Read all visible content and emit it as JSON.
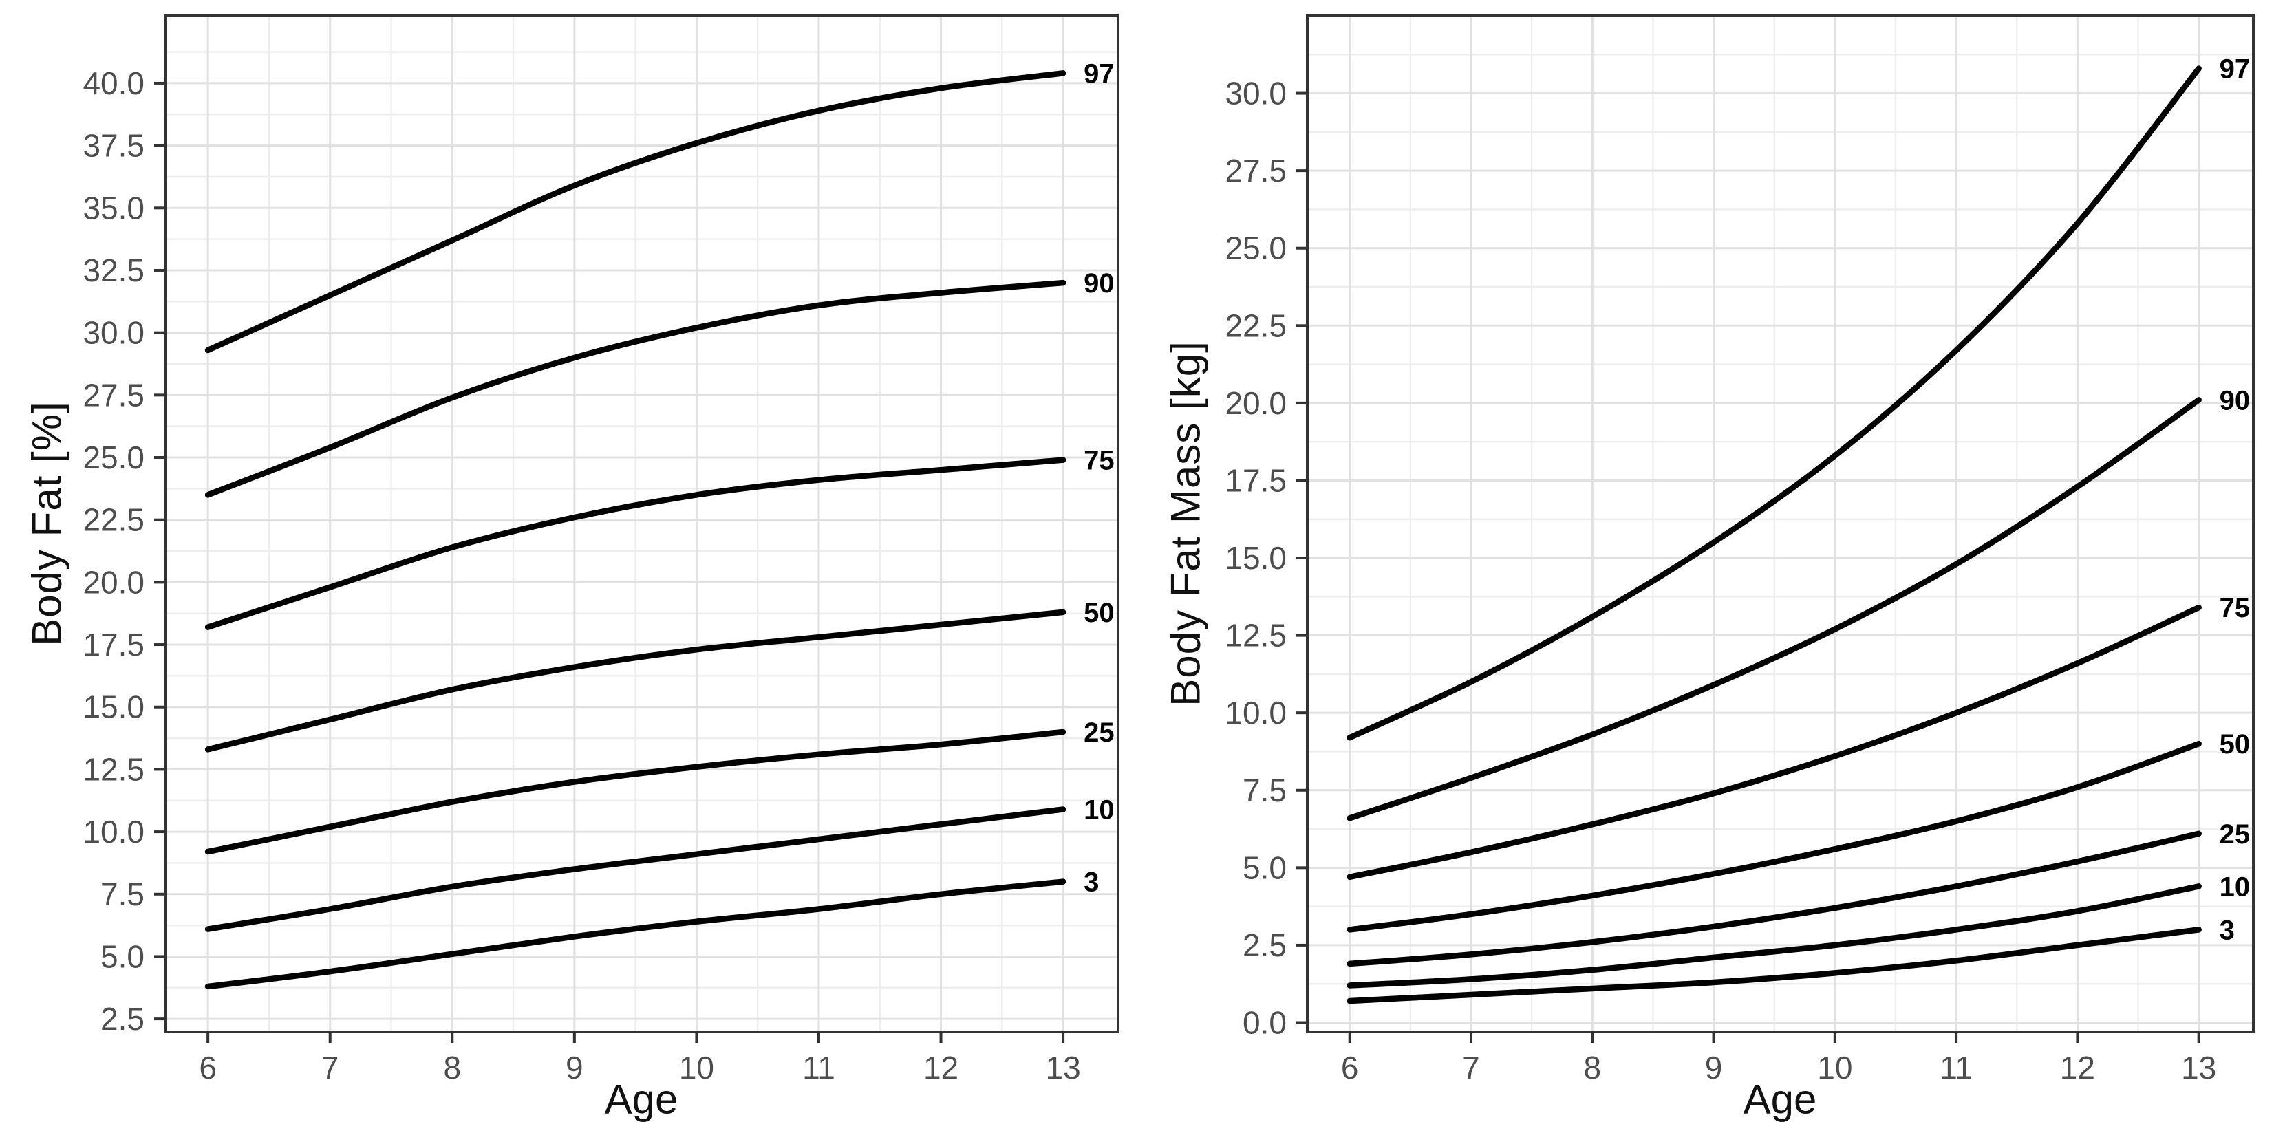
{
  "figure": {
    "background": "#ffffff",
    "colors": {
      "curve": "#000000",
      "panel_border": "#333333",
      "grid_major": "#e1e1e1",
      "grid_minor": "#ededed",
      "tick_mark": "#333333",
      "tick_label": "#4d4d4d",
      "axis_title": "#111111",
      "curve_label": "#000000"
    }
  },
  "chart_data": [
    {
      "type": "line",
      "title": "",
      "xlabel": "Age",
      "ylabel": "Body Fat [%]",
      "grid": true,
      "legend_position": "curve-end-labels",
      "x": [
        6,
        7,
        8,
        9,
        10,
        11,
        12,
        13
      ],
      "x_tick_labels": [
        "6",
        "7",
        "8",
        "9",
        "10",
        "11",
        "12",
        "13"
      ],
      "y_tick_labels": [
        "2.5",
        "5.0",
        "7.5",
        "10.0",
        "12.5",
        "15.0",
        "17.5",
        "20.0",
        "22.5",
        "25.0",
        "27.5",
        "30.0",
        "32.5",
        "35.0",
        "37.5",
        "40.0"
      ],
      "xlim": [
        5.65,
        13.45
      ],
      "ylim": [
        1.98,
        42.7
      ],
      "series": [
        {
          "name": "97",
          "values": [
            29.3,
            31.5,
            33.7,
            35.9,
            37.6,
            38.9,
            39.8,
            40.4
          ]
        },
        {
          "name": "90",
          "values": [
            23.5,
            25.4,
            27.4,
            29.0,
            30.2,
            31.1,
            31.6,
            32.0
          ]
        },
        {
          "name": "75",
          "values": [
            18.2,
            19.8,
            21.4,
            22.6,
            23.5,
            24.1,
            24.5,
            24.9
          ]
        },
        {
          "name": "50",
          "values": [
            13.3,
            14.5,
            15.7,
            16.6,
            17.3,
            17.8,
            18.3,
            18.8
          ]
        },
        {
          "name": "25",
          "values": [
            9.2,
            10.2,
            11.2,
            12.0,
            12.6,
            13.1,
            13.5,
            14.0
          ]
        },
        {
          "name": "10",
          "values": [
            6.1,
            6.9,
            7.8,
            8.5,
            9.1,
            9.7,
            10.3,
            10.9
          ]
        },
        {
          "name": "3",
          "values": [
            3.8,
            4.4,
            5.1,
            5.8,
            6.4,
            6.9,
            7.5,
            8.0
          ]
        }
      ]
    },
    {
      "type": "line",
      "title": "",
      "xlabel": "Age",
      "ylabel": "Body Fat Mass [kg]",
      "grid": true,
      "legend_position": "curve-end-labels",
      "x": [
        6,
        7,
        8,
        9,
        10,
        11,
        12,
        13
      ],
      "x_tick_labels": [
        "6",
        "7",
        "8",
        "9",
        "10",
        "11",
        "12",
        "13"
      ],
      "y_tick_labels": [
        "0.0",
        "2.5",
        "5.0",
        "7.5",
        "10.0",
        "12.5",
        "15.0",
        "17.5",
        "20.0",
        "22.5",
        "25.0",
        "27.5",
        "30.0"
      ],
      "xlim": [
        5.65,
        13.45
      ],
      "ylim": [
        -0.3,
        32.5
      ],
      "series": [
        {
          "name": "97",
          "values": [
            9.2,
            11.0,
            13.1,
            15.5,
            18.3,
            21.7,
            25.8,
            30.8
          ]
        },
        {
          "name": "90",
          "values": [
            6.6,
            7.9,
            9.3,
            10.9,
            12.7,
            14.8,
            17.3,
            20.1
          ]
        },
        {
          "name": "75",
          "values": [
            4.7,
            5.5,
            6.4,
            7.4,
            8.6,
            10.0,
            11.6,
            13.4
          ]
        },
        {
          "name": "50",
          "values": [
            3.0,
            3.5,
            4.1,
            4.8,
            5.6,
            6.5,
            7.6,
            9.0
          ]
        },
        {
          "name": "25",
          "values": [
            1.9,
            2.2,
            2.6,
            3.1,
            3.7,
            4.4,
            5.2,
            6.1
          ]
        },
        {
          "name": "10",
          "values": [
            1.2,
            1.4,
            1.7,
            2.1,
            2.5,
            3.0,
            3.6,
            4.4
          ]
        },
        {
          "name": "3",
          "values": [
            0.7,
            0.9,
            1.1,
            1.3,
            1.6,
            2.0,
            2.5,
            3.0
          ]
        }
      ]
    }
  ]
}
